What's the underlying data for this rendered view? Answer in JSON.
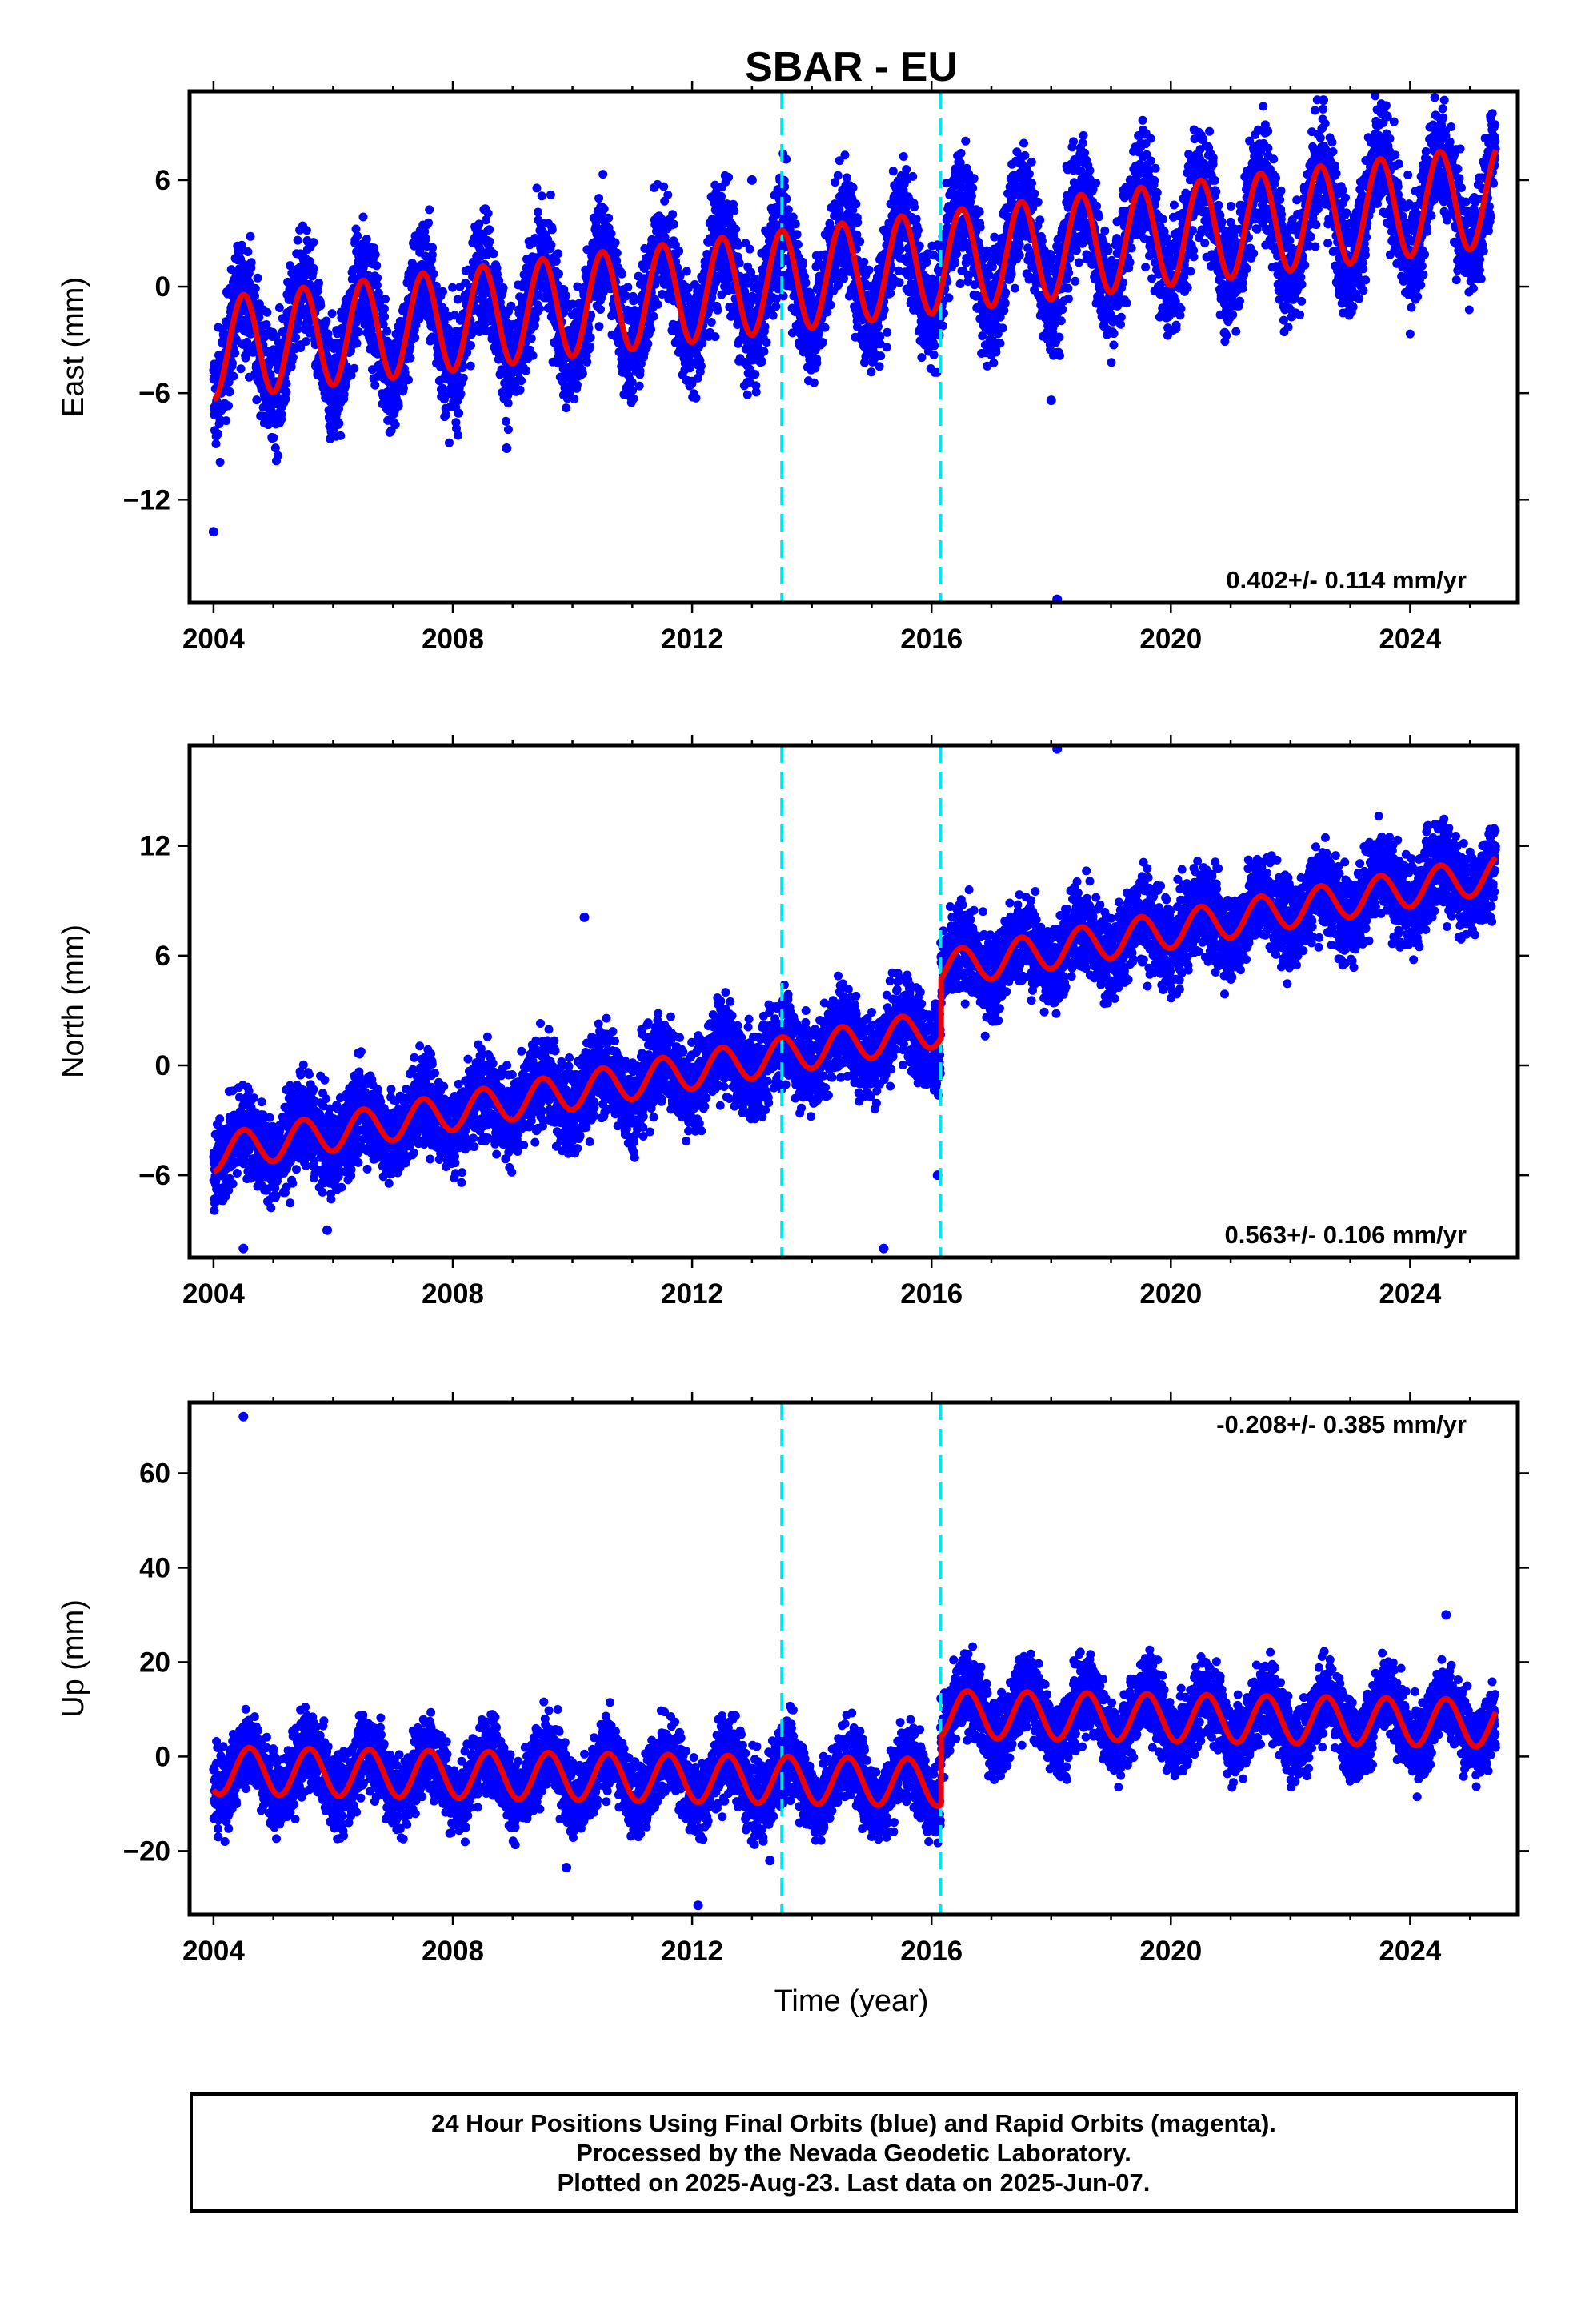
{
  "chart_data": {
    "type": "scatter",
    "title": "SBAR - EU",
    "xlabel": "Time (year)",
    "x_range": [
      2003.6,
      2025.8
    ],
    "x_ticks": [
      "2004",
      "2008",
      "2012",
      "2016",
      "2020",
      "2024"
    ],
    "x_tick_values": [
      2004,
      2008,
      2012,
      2016,
      2020,
      2024
    ],
    "event_lines": [
      2013.5,
      2016.15
    ],
    "event_line_color": "#00e5ee",
    "point_color": "#0000ff",
    "fit_color": "#ee0000",
    "panels": [
      {
        "name": "east",
        "ylabel": "East (mm)",
        "ylim": [
          -17.8,
          11.0
        ],
        "y_ticks": [
          "6",
          "0",
          "−6",
          "−12"
        ],
        "y_tick_values": [
          6,
          0,
          -6,
          -12
        ],
        "rate_text": "0.402+/- 0.114 mm/yr",
        "rate_position": "bottom-right",
        "trend": {
          "start": -3.5,
          "rate": 0.402,
          "amplitude": 2.85,
          "peak_phase": 0.5
        },
        "offsets": [],
        "scatter_sd": 1.6,
        "outliers": [
          [
            2004.0,
            -13.8
          ],
          [
            2018.1,
            -17.6
          ],
          [
            2022.55,
            10.5
          ],
          [
            2013.0,
            6.0
          ],
          [
            2018.0,
            -6.4
          ],
          [
            2008.9,
            -9.1
          ],
          [
            2020.9,
            -2.6
          ]
        ]
      },
      {
        "name": "north",
        "ylabel": "North (mm)",
        "ylim": [
          -10.5,
          17.5
        ],
        "y_ticks": [
          "12",
          "6",
          "0",
          "−6"
        ],
        "y_tick_values": [
          12,
          6,
          0,
          -6
        ],
        "rate_text": "0.563+/- 0.106 mm/yr",
        "rate_position": "bottom-right",
        "trend": {
          "start": -4.8,
          "rate": 0.563,
          "amplitude": 1.0,
          "peak_phase": 0.5
        },
        "offsets": [
          {
            "year": 2016.15,
            "step": 3.2
          }
        ],
        "scatter_sd": 1.2,
        "outliers": [
          [
            2018.1,
            17.3
          ],
          [
            2010.2,
            8.1
          ],
          [
            2004.5,
            -10.0
          ],
          [
            2015.2,
            -10.0
          ],
          [
            2005.9,
            -9.0
          ],
          [
            2024.3,
            13.1
          ],
          [
            2016.1,
            -6.0
          ]
        ]
      },
      {
        "name": "up",
        "ylabel": "Up (mm)",
        "ylim": [
          -33.5,
          75.0
        ],
        "y_ticks": [
          "60",
          "40",
          "20",
          "0",
          "−20"
        ],
        "y_tick_values": [
          60,
          40,
          20,
          0,
          -20
        ],
        "rate_text": "-0.208+/- 0.385 mm/yr",
        "rate_position": "top-right",
        "trend": {
          "start": -3.0,
          "rate": -0.208,
          "amplitude": 5.0,
          "peak_phase": 0.6
        },
        "offsets": [
          {
            "year": 2016.15,
            "step": 14.5
          }
        ],
        "scatter_sd": 4.0,
        "outliers": [
          [
            2004.5,
            72.0
          ],
          [
            2012.1,
            -31.5
          ],
          [
            2024.6,
            30.0
          ],
          [
            2013.3,
            -22.0
          ],
          [
            2009.9,
            -23.5
          ]
        ]
      }
    ]
  },
  "footer": {
    "line1": "24 Hour Positions Using Final Orbits (blue) and Rapid Orbits (magenta).",
    "line2": "Processed by the Nevada Geodetic Laboratory.",
    "line3": "Plotted on 2025-Aug-23. Last data on 2025-Jun-07."
  }
}
